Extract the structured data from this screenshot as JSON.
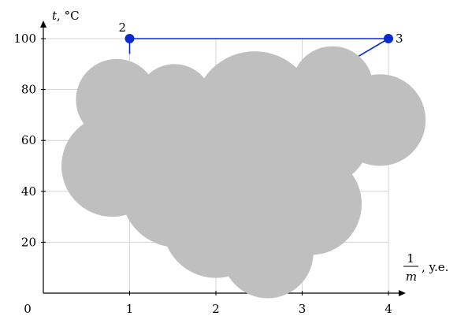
{
  "chart_data": {
    "type": "line",
    "y_axis_title": {
      "var": "t",
      "unit": ", °C"
    },
    "x_axis_title": {
      "numerator": "1",
      "denominator": "m",
      "unit": ", y.e."
    },
    "xlim": [
      0,
      4
    ],
    "ylim": [
      0,
      100
    ],
    "x_ticks": [
      {
        "value": 0,
        "label": "0"
      },
      {
        "value": 1,
        "label": "1"
      },
      {
        "value": 2,
        "label": "2"
      },
      {
        "value": 3,
        "label": "3"
      },
      {
        "value": 4,
        "label": "4"
      }
    ],
    "y_ticks": [
      {
        "value": 20,
        "label": "20"
      },
      {
        "value": 40,
        "label": "40"
      },
      {
        "value": 60,
        "label": "60"
      },
      {
        "value": 80,
        "label": "80"
      },
      {
        "value": 100,
        "label": "100"
      }
    ],
    "grid": true,
    "series": [
      {
        "color": "#0a2ad0",
        "points": [
          {
            "x": 1,
            "y": 100,
            "label": "2"
          },
          {
            "x": 4,
            "y": 100,
            "label": "3"
          }
        ],
        "segments": [
          {
            "x1": 1,
            "y1": 100,
            "x2": 1,
            "y2": 94
          },
          {
            "x1": 4,
            "y1": 100,
            "x2": 3.5,
            "y2": 90
          }
        ]
      }
    ],
    "occluder": {
      "color": "#bfbfbf",
      "circles": [
        {
          "cx": 0.85,
          "cy": 76,
          "r": 16
        },
        {
          "cx": 0.8,
          "cy": 50,
          "r": 20
        },
        {
          "cx": 1.52,
          "cy": 75,
          "r": 15
        },
        {
          "cx": 2.45,
          "cy": 71,
          "r": 24
        },
        {
          "cx": 3.35,
          "cy": 81,
          "r": 16
        },
        {
          "cx": 3.9,
          "cy": 68,
          "r": 18
        },
        {
          "cx": 2.6,
          "cy": 48,
          "r": 30
        },
        {
          "cx": 1.55,
          "cy": 40,
          "r": 22
        },
        {
          "cx": 2.0,
          "cy": 27,
          "r": 21
        },
        {
          "cx": 2.6,
          "cy": 16,
          "r": 18
        },
        {
          "cx": 3.1,
          "cy": 35,
          "r": 20
        },
        {
          "cx": 1.4,
          "cy": 56,
          "r": 18
        },
        {
          "cx": 3.2,
          "cy": 62,
          "r": 20
        }
      ]
    }
  }
}
